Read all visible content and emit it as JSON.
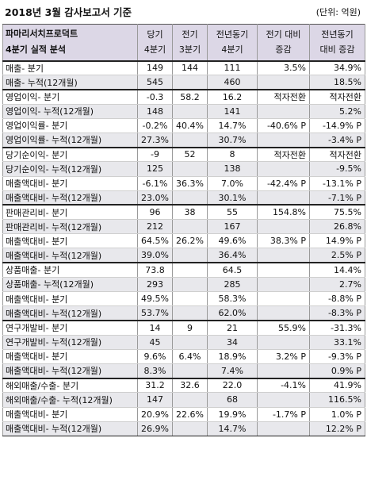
{
  "title": "2018년 3월 감사보고서 기준",
  "unit": "(단위: 억원)",
  "header": {
    "company": "파마리서치프로덕트",
    "subtitle": "4분기 실적 분석",
    "col1a": "당기",
    "col1b": "4분기",
    "col2a": "전기",
    "col2b": "3분기",
    "col3a": "전년동기",
    "col3b": "4분기",
    "col4a": "전기 대비",
    "col4b": "증감",
    "col5a": "전년동기",
    "col5b": "대비 증감"
  },
  "groups": [
    {
      "rows": [
        {
          "label": "매출- 분기",
          "v": [
            "149",
            "144",
            "111",
            "3.5%",
            "34.9%"
          ]
        },
        {
          "label": "매출- 누적(12개월)",
          "v": [
            "545",
            "",
            "460",
            "",
            "18.5%"
          ]
        }
      ]
    },
    {
      "rows": [
        {
          "label": "영업이익- 분기",
          "v": [
            "-0.3",
            "58.2",
            "16.2",
            "적자전환",
            "적자전환"
          ]
        },
        {
          "label": "영업이익- 누적(12개월)",
          "v": [
            "148",
            "",
            "141",
            "",
            "5.2%"
          ]
        },
        {
          "label": "영업이익률- 분기",
          "v": [
            "-0.2%",
            "40.4%",
            "14.7%",
            "-40.6% P",
            "-14.9% P"
          ]
        },
        {
          "label": "영업이익률- 누적(12개월)",
          "v": [
            "27.3%",
            "",
            "30.7%",
            "",
            "-3.4% P"
          ]
        }
      ]
    },
    {
      "rows": [
        {
          "label": "당기순이익- 분기",
          "v": [
            "-9",
            "52",
            "8",
            "적자전환",
            "적자전환"
          ]
        },
        {
          "label": "당기순이익- 누적(12개월)",
          "v": [
            "125",
            "",
            "138",
            "",
            "-9.5%"
          ]
        },
        {
          "label": "매출액대비- 분기",
          "v": [
            "-6.1%",
            "36.3%",
            "7.0%",
            "-42.4% P",
            "-13.1% P"
          ]
        },
        {
          "label": "매출액대비- 누적(12개월)",
          "v": [
            "23.0%",
            "",
            "30.1%",
            "",
            "-7.1% P"
          ]
        }
      ]
    },
    {
      "rows": [
        {
          "label": "판매관리비- 분기",
          "v": [
            "96",
            "38",
            "55",
            "154.8%",
            "75.5%"
          ]
        },
        {
          "label": "판매관리비- 누적(12개월)",
          "v": [
            "212",
            "",
            "167",
            "",
            "26.8%"
          ]
        },
        {
          "label": "매출액대비- 분기",
          "v": [
            "64.5%",
            "26.2%",
            "49.6%",
            "38.3% P",
            "14.9% P"
          ]
        },
        {
          "label": "매출액대비- 누적(12개월)",
          "v": [
            "39.0%",
            "",
            "36.4%",
            "",
            "2.5% P"
          ]
        }
      ]
    },
    {
      "rows": [
        {
          "label": "상품매출- 분기",
          "v": [
            "73.8",
            "",
            "64.5",
            "",
            "14.4%"
          ]
        },
        {
          "label": "상품매출- 누적(12개월)",
          "v": [
            "293",
            "",
            "285",
            "",
            "2.7%"
          ]
        },
        {
          "label": "매출액대비- 분기",
          "v": [
            "49.5%",
            "",
            "58.3%",
            "",
            "-8.8% P"
          ]
        },
        {
          "label": "매출액대비- 누적(12개월)",
          "v": [
            "53.7%",
            "",
            "62.0%",
            "",
            "-8.3% P"
          ]
        }
      ]
    },
    {
      "rows": [
        {
          "label": "연구개발비- 분기",
          "v": [
            "14",
            "9",
            "21",
            "55.9%",
            "-31.3%"
          ]
        },
        {
          "label": "연구개발비- 누적(12개월)",
          "v": [
            "45",
            "",
            "34",
            "",
            "33.1%"
          ]
        },
        {
          "label": "매출액대비- 분기",
          "v": [
            "9.6%",
            "6.4%",
            "18.9%",
            "3.2% P",
            "-9.3% P"
          ]
        },
        {
          "label": "매출액대비- 누적(12개월)",
          "v": [
            "8.3%",
            "",
            "7.4%",
            "",
            "0.9% P"
          ]
        }
      ]
    },
    {
      "rows": [
        {
          "label": "해외매출/수출- 분기",
          "v": [
            "31.2",
            "32.6",
            "22.0",
            "-4.1%",
            "41.9%"
          ]
        },
        {
          "label": "해외매출/수출- 누적(12개월)",
          "v": [
            "147",
            "",
            "68",
            "",
            "116.5%"
          ]
        },
        {
          "label": "매출액대비- 분기",
          "v": [
            "20.9%",
            "22.6%",
            "19.9%",
            "-1.7% P",
            "1.0% P"
          ]
        },
        {
          "label": "매출액대비- 누적(12개월)",
          "v": [
            "26.9%",
            "",
            "14.7%",
            "",
            "12.2% P"
          ]
        }
      ]
    }
  ]
}
